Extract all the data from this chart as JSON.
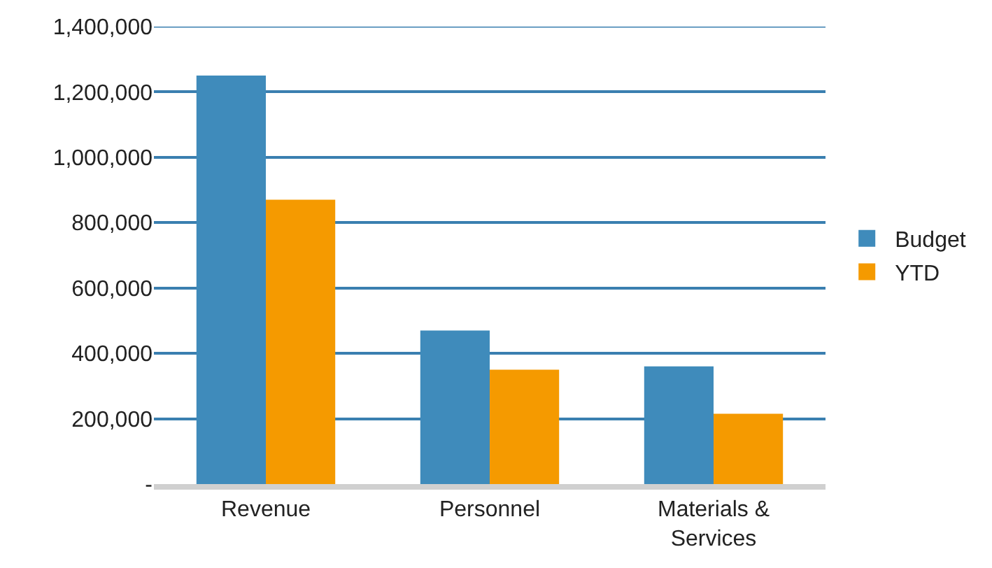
{
  "chart_data": {
    "type": "bar",
    "categories": [
      "Revenue",
      "Personnel",
      "Materials &\nServices"
    ],
    "series": [
      {
        "name": "Budget",
        "color": "#3f8bbb",
        "values": [
          1250000,
          470000,
          360000
        ]
      },
      {
        "name": "YTD",
        "color": "#f59a00",
        "values": [
          870000,
          350000,
          215000
        ]
      }
    ],
    "ylim": [
      0,
      1400000
    ],
    "yticks": [
      {
        "value": 0,
        "label": "-"
      },
      {
        "value": 200000,
        "label": "200,000"
      },
      {
        "value": 400000,
        "label": "400,000"
      },
      {
        "value": 600000,
        "label": "600,000"
      },
      {
        "value": 800000,
        "label": "800,000"
      },
      {
        "value": 1000000,
        "label": "1,000,000"
      },
      {
        "value": 1200000,
        "label": "1,200,000"
      },
      {
        "value": 1400000,
        "label": "1,400,000"
      }
    ],
    "grid": "y",
    "legend": "right"
  }
}
